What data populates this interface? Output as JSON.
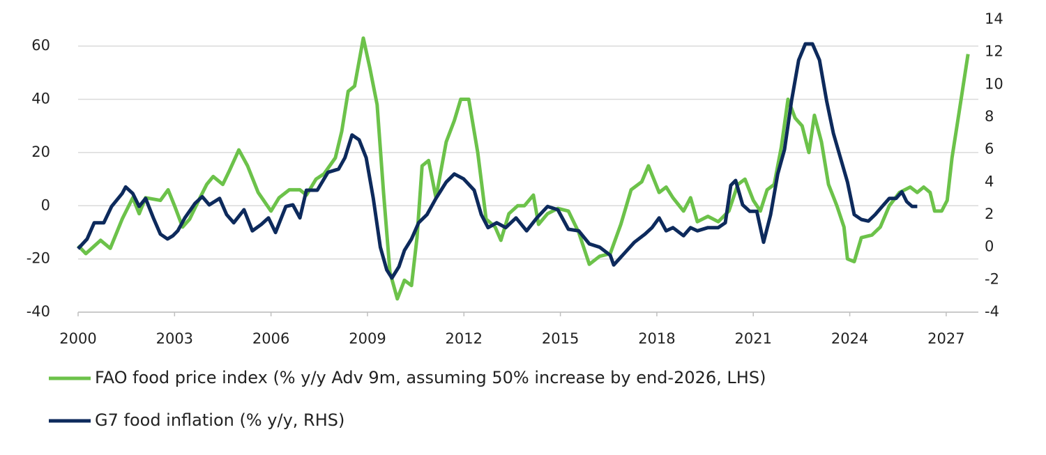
{
  "chart_data": {
    "type": "line",
    "xlim": [
      2000,
      2028
    ],
    "xticks": [
      2000,
      2003,
      2006,
      2009,
      2012,
      2015,
      2018,
      2021,
      2024,
      2027
    ],
    "ylim": [
      -40,
      70
    ],
    "yticks": [
      -40,
      -20,
      0,
      20,
      40,
      60
    ],
    "y2lim": [
      -4,
      14
    ],
    "y2ticks": [
      -4,
      -2,
      0,
      2,
      4,
      6,
      8,
      10,
      12,
      14
    ],
    "grid": true,
    "series": [
      {
        "name": "FAO food price index (% y/y Adv 9m, assuming 50% increase by end-2026, LHS)",
        "color": "#6cc24a",
        "x": [
          2000.0,
          2000.24,
          2000.7,
          2001.0,
          2001.37,
          2001.7,
          2001.9,
          2002.1,
          2002.56,
          2002.8,
          2003.0,
          2003.25,
          2003.47,
          2003.75,
          2004.0,
          2004.2,
          2004.5,
          2004.7,
          2005.0,
          2005.27,
          2005.6,
          2006.0,
          2006.25,
          2006.57,
          2006.9,
          2007.1,
          2007.4,
          2007.65,
          2008.0,
          2008.2,
          2008.4,
          2008.6,
          2008.87,
          2009.07,
          2009.3,
          2009.5,
          2009.7,
          2009.93,
          2010.15,
          2010.37,
          2010.54,
          2010.7,
          2010.9,
          2011.13,
          2011.45,
          2011.7,
          2011.9,
          2012.15,
          2012.43,
          2012.69,
          2012.97,
          2013.15,
          2013.4,
          2013.67,
          2013.88,
          2014.16,
          2014.32,
          2014.6,
          2014.92,
          2015.25,
          2015.57,
          2015.9,
          2016.22,
          2016.55,
          2016.88,
          2017.2,
          2017.53,
          2017.74,
          2018.07,
          2018.29,
          2018.5,
          2018.83,
          2019.05,
          2019.26,
          2019.59,
          2019.91,
          2020.24,
          2020.52,
          2020.74,
          2021.0,
          2021.22,
          2021.43,
          2021.65,
          2021.87,
          2022.08,
          2022.3,
          2022.52,
          2022.73,
          2022.9,
          2023.12,
          2023.34,
          2023.6,
          2023.82,
          2023.93,
          2024.14,
          2024.36,
          2024.69,
          2024.95,
          2025.23,
          2025.55,
          2025.88,
          2026.1,
          2026.3,
          2026.5,
          2026.64,
          2026.86,
          2027.03,
          2027.18,
          2027.4,
          2027.68
        ],
        "values": [
          -15,
          -18,
          -13,
          -16,
          -5,
          3,
          -3,
          3,
          2,
          6,
          0,
          -8,
          -5,
          2,
          8,
          11,
          8,
          13,
          21,
          15,
          5,
          -2,
          3,
          6,
          6,
          4,
          10,
          12,
          18,
          28,
          43,
          45,
          63,
          52,
          38,
          5,
          -25,
          -35,
          -28,
          -30,
          -12,
          15,
          17,
          3,
          24,
          32,
          40,
          40,
          20,
          -5,
          -8,
          -13,
          -3,
          0,
          0,
          4,
          -7,
          -3,
          -1,
          -2,
          -10,
          -22,
          -19,
          -18,
          -7,
          6,
          9,
          15,
          5,
          7,
          3,
          -2,
          3,
          -6,
          -4,
          -6,
          -2,
          8,
          10,
          2,
          -2,
          6,
          8,
          22,
          40,
          33,
          30,
          20,
          34,
          24,
          8,
          0,
          -8,
          -20,
          -21,
          -12,
          -11,
          -8,
          0,
          5,
          7,
          5,
          7,
          5,
          -2,
          -2,
          2,
          18,
          35,
          57
        ]
      },
      {
        "name": "G7 food inflation (% y/y, RHS)",
        "color": "#0d2a5c",
        "axis": "y2",
        "x": [
          2000.0,
          2000.28,
          2000.5,
          2000.8,
          2001.04,
          2001.37,
          2001.48,
          2001.7,
          2001.9,
          2002.1,
          2002.34,
          2002.56,
          2002.78,
          2002.95,
          2003.1,
          2003.32,
          2003.64,
          2003.86,
          2004.08,
          2004.4,
          2004.62,
          2004.84,
          2005.16,
          2005.42,
          2005.7,
          2005.92,
          2006.14,
          2006.46,
          2006.68,
          2006.9,
          2007.1,
          2007.44,
          2007.77,
          2008.1,
          2008.3,
          2008.52,
          2008.74,
          2008.96,
          2009.18,
          2009.4,
          2009.6,
          2009.76,
          2009.98,
          2010.15,
          2010.37,
          2010.59,
          2010.85,
          2011.13,
          2011.45,
          2011.7,
          2011.99,
          2012.32,
          2012.54,
          2012.75,
          2013.02,
          2013.3,
          2013.62,
          2013.95,
          2014.27,
          2014.6,
          2014.92,
          2015.25,
          2015.57,
          2015.9,
          2016.22,
          2016.55,
          2016.66,
          2016.98,
          2017.3,
          2017.63,
          2017.85,
          2018.07,
          2018.29,
          2018.5,
          2018.83,
          2019.05,
          2019.26,
          2019.59,
          2019.91,
          2020.13,
          2020.3,
          2020.45,
          2020.67,
          2020.89,
          2021.11,
          2021.32,
          2021.54,
          2021.76,
          2021.97,
          2022.19,
          2022.41,
          2022.62,
          2022.84,
          2023.06,
          2023.28,
          2023.49,
          2023.71,
          2023.93,
          2024.14,
          2024.36,
          2024.58,
          2024.79,
          2025.01,
          2025.23,
          2025.44,
          2025.62,
          2025.77,
          2025.94,
          2026.1
        ],
        "values": [
          -0.1,
          0.5,
          1.5,
          1.5,
          2.5,
          3.3,
          3.7,
          3.3,
          2.5,
          3.0,
          1.8,
          0.8,
          0.5,
          0.7,
          1.0,
          1.8,
          2.7,
          3.1,
          2.6,
          3.0,
          2.0,
          1.5,
          2.3,
          1.0,
          1.4,
          1.8,
          0.9,
          2.5,
          2.6,
          1.8,
          3.5,
          3.5,
          4.6,
          4.8,
          5.5,
          6.9,
          6.6,
          5.5,
          3.0,
          0.0,
          -1.4,
          -1.9,
          -1.2,
          -0.2,
          0.5,
          1.5,
          2.0,
          3.0,
          4.0,
          4.5,
          4.2,
          3.5,
          2.0,
          1.2,
          1.5,
          1.2,
          1.8,
          1.0,
          1.8,
          2.5,
          2.3,
          1.1,
          1.0,
          0.2,
          0.0,
          -0.5,
          -1.1,
          -0.4,
          0.3,
          0.8,
          1.2,
          1.8,
          1.0,
          1.2,
          0.7,
          1.2,
          1.0,
          1.2,
          1.2,
          1.5,
          3.8,
          4.1,
          2.6,
          2.2,
          2.2,
          0.3,
          2.0,
          4.5,
          6.0,
          9.0,
          11.5,
          12.5,
          12.5,
          11.5,
          9.0,
          7.0,
          5.5,
          4.0,
          2.0,
          1.7,
          1.6,
          2.0,
          2.5,
          3.0,
          3.0,
          3.4,
          2.8,
          2.5,
          2.5
        ]
      }
    ]
  }
}
